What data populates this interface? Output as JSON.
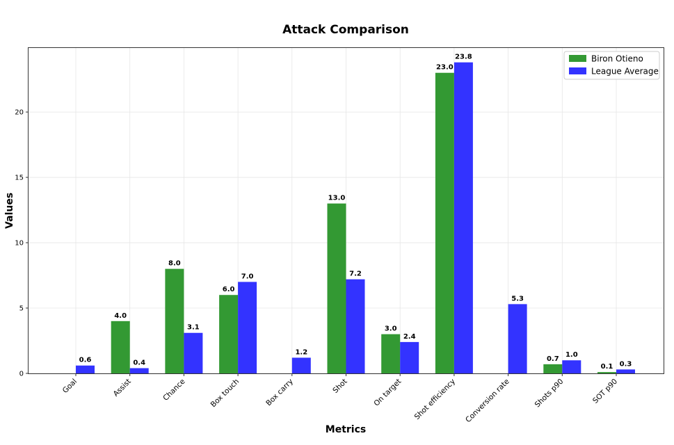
{
  "chart_data": {
    "type": "bar",
    "title": "Attack Comparison",
    "xlabel": "Metrics",
    "ylabel": "Values",
    "categories": [
      "Goal",
      "Assist",
      "Chance",
      "Box touch",
      "Box carry",
      "Shot",
      "On target",
      "Shot efficiency",
      "Conversion rate",
      "Shots p90",
      "SOT p90"
    ],
    "series": [
      {
        "name": "Biron Otieno",
        "color": "#339933",
        "values": [
          0,
          4.0,
          8.0,
          6.0,
          0,
          13.0,
          3.0,
          23.0,
          0,
          0.7,
          0.1
        ],
        "labels": [
          "",
          "4.0",
          "8.0",
          "6.0",
          "",
          "13.0",
          "3.0",
          "23.0",
          "",
          "0.7",
          "0.1"
        ]
      },
      {
        "name": "League Average",
        "color": "#3333ff",
        "values": [
          0.6,
          0.4,
          3.1,
          7.0,
          1.2,
          7.2,
          2.4,
          23.8,
          5.3,
          1.0,
          0.3
        ],
        "labels": [
          "0.6",
          "0.4",
          "3.1",
          "7.0",
          "1.2",
          "7.2",
          "2.4",
          "23.8",
          "5.3",
          "1.0",
          "0.3"
        ]
      }
    ],
    "ylim": [
      0,
      24.9
    ],
    "yticks": [
      "0",
      "5",
      "10",
      "15",
      "20"
    ],
    "grid": true,
    "legend": "top-right"
  }
}
